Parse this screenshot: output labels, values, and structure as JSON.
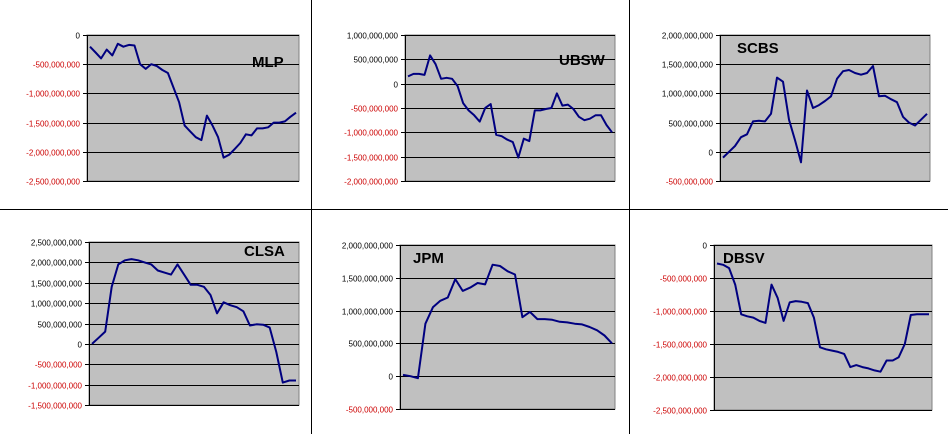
{
  "colors": {
    "plot_background": "#c0c0c0",
    "series": "#000080",
    "negative_tick": "#cc0000",
    "positive_tick": "#000000"
  },
  "chart_data": [
    {
      "type": "line",
      "title": "MLP",
      "ylim": [
        -2500000000,
        0
      ],
      "ytick_step": 500000000,
      "ytick_labels": [
        "0",
        "-500,000,000",
        "-1,000,000,000",
        "-1,500,000,000",
        "-2,000,000,000",
        "-2,500,000,000"
      ],
      "grid": true,
      "values": [
        -200000000,
        -300000000,
        -400000000,
        -250000000,
        -350000000,
        -150000000,
        -200000000,
        -170000000,
        -180000000,
        -500000000,
        -580000000,
        -500000000,
        -530000000,
        -600000000,
        -650000000,
        -900000000,
        -1150000000,
        -1550000000,
        -1650000000,
        -1750000000,
        -1800000000,
        -1380000000,
        -1550000000,
        -1750000000,
        -2100000000,
        -2050000000,
        -1950000000,
        -1850000000,
        -1700000000,
        -1720000000,
        -1600000000,
        -1600000000,
        -1580000000,
        -1500000000,
        -1500000000,
        -1480000000,
        -1400000000,
        -1330000000
      ]
    },
    {
      "type": "line",
      "title": "UBSW",
      "ylim": [
        -2000000000,
        1000000000
      ],
      "ytick_step": 500000000,
      "ytick_labels": [
        "1,000,000,000",
        "500,000,000",
        "0",
        "-500,000,000",
        "-1,000,000,000",
        "-1,500,000,000",
        "-2,000,000,000"
      ],
      "grid": true,
      "values": [
        150000000,
        200000000,
        200000000,
        180000000,
        580000000,
        400000000,
        100000000,
        120000000,
        100000000,
        -50000000,
        -400000000,
        -550000000,
        -650000000,
        -780000000,
        -500000000,
        -420000000,
        -1050000000,
        -1080000000,
        -1150000000,
        -1200000000,
        -1520000000,
        -1130000000,
        -1180000000,
        -550000000,
        -550000000,
        -520000000,
        -500000000,
        -200000000,
        -450000000,
        -430000000,
        -520000000,
        -680000000,
        -750000000,
        -720000000,
        -650000000,
        -650000000,
        -850000000,
        -1000000000
      ]
    },
    {
      "type": "line",
      "title": "SCBS",
      "ylim": [
        -500000000,
        2000000000
      ],
      "ytick_step": 500000000,
      "ytick_labels": [
        "2,000,000,000",
        "1,500,000,000",
        "1,000,000,000",
        "500,000,000",
        "0",
        "-500,000,000"
      ],
      "grid": true,
      "values": [
        -100000000,
        0,
        100000000,
        250000000,
        300000000,
        520000000,
        530000000,
        520000000,
        650000000,
        1270000000,
        1200000000,
        550000000,
        200000000,
        -180000000,
        1050000000,
        750000000,
        800000000,
        870000000,
        950000000,
        1250000000,
        1380000000,
        1400000000,
        1350000000,
        1320000000,
        1350000000,
        1470000000,
        950000000,
        960000000,
        900000000,
        850000000,
        600000000,
        500000000,
        450000000,
        550000000,
        650000000
      ]
    },
    {
      "type": "line",
      "title": "CLSA",
      "ylim": [
        -1500000000,
        2500000000
      ],
      "ytick_step": 500000000,
      "ytick_labels": [
        "2,500,000,000",
        "2,000,000,000",
        "1,500,000,000",
        "1,000,000,000",
        "500,000,000",
        "0",
        "-500,000,000",
        "-1,000,000,000",
        "-1,500,000,000"
      ],
      "grid": true,
      "values": [
        0,
        150000000,
        300000000,
        1400000000,
        1950000000,
        2050000000,
        2080000000,
        2050000000,
        2000000000,
        1950000000,
        1800000000,
        1750000000,
        1700000000,
        1950000000,
        1700000000,
        1450000000,
        1450000000,
        1400000000,
        1200000000,
        750000000,
        1020000000,
        950000000,
        900000000,
        800000000,
        450000000,
        480000000,
        470000000,
        400000000,
        -200000000,
        -950000000,
        -900000000,
        -900000000
      ]
    },
    {
      "type": "line",
      "title": "JPM",
      "ylim": [
        -500000000,
        2000000000
      ],
      "ytick_step": 500000000,
      "ytick_labels": [
        "2,000,000,000",
        "1,500,000,000",
        "1,000,000,000",
        "500,000,000",
        "0",
        "-500,000,000"
      ],
      "grid": true,
      "values": [
        20000000,
        0,
        -30000000,
        800000000,
        1050000000,
        1150000000,
        1200000000,
        1480000000,
        1300000000,
        1350000000,
        1420000000,
        1400000000,
        1700000000,
        1680000000,
        1600000000,
        1550000000,
        900000000,
        980000000,
        870000000,
        870000000,
        860000000,
        830000000,
        820000000,
        800000000,
        790000000,
        750000000,
        700000000,
        620000000,
        500000000
      ]
    },
    {
      "type": "line",
      "title": "DBSV",
      "ylim": [
        -2500000000,
        0
      ],
      "ytick_step": 500000000,
      "ytick_labels": [
        "0",
        "-500,000,000",
        "-1,000,000,000",
        "-1,500,000,000",
        "-2,000,000,000",
        "-2,500,000,000"
      ],
      "grid": true,
      "values": [
        -280000000,
        -300000000,
        -350000000,
        -600000000,
        -1050000000,
        -1080000000,
        -1100000000,
        -1150000000,
        -1180000000,
        -600000000,
        -800000000,
        -1150000000,
        -870000000,
        -850000000,
        -860000000,
        -880000000,
        -1100000000,
        -1550000000,
        -1580000000,
        -1600000000,
        -1620000000,
        -1650000000,
        -1850000000,
        -1820000000,
        -1850000000,
        -1870000000,
        -1900000000,
        -1920000000,
        -1750000000,
        -1750000000,
        -1700000000,
        -1500000000,
        -1060000000,
        -1050000000,
        -1050000000,
        -1050000000
      ]
    }
  ]
}
